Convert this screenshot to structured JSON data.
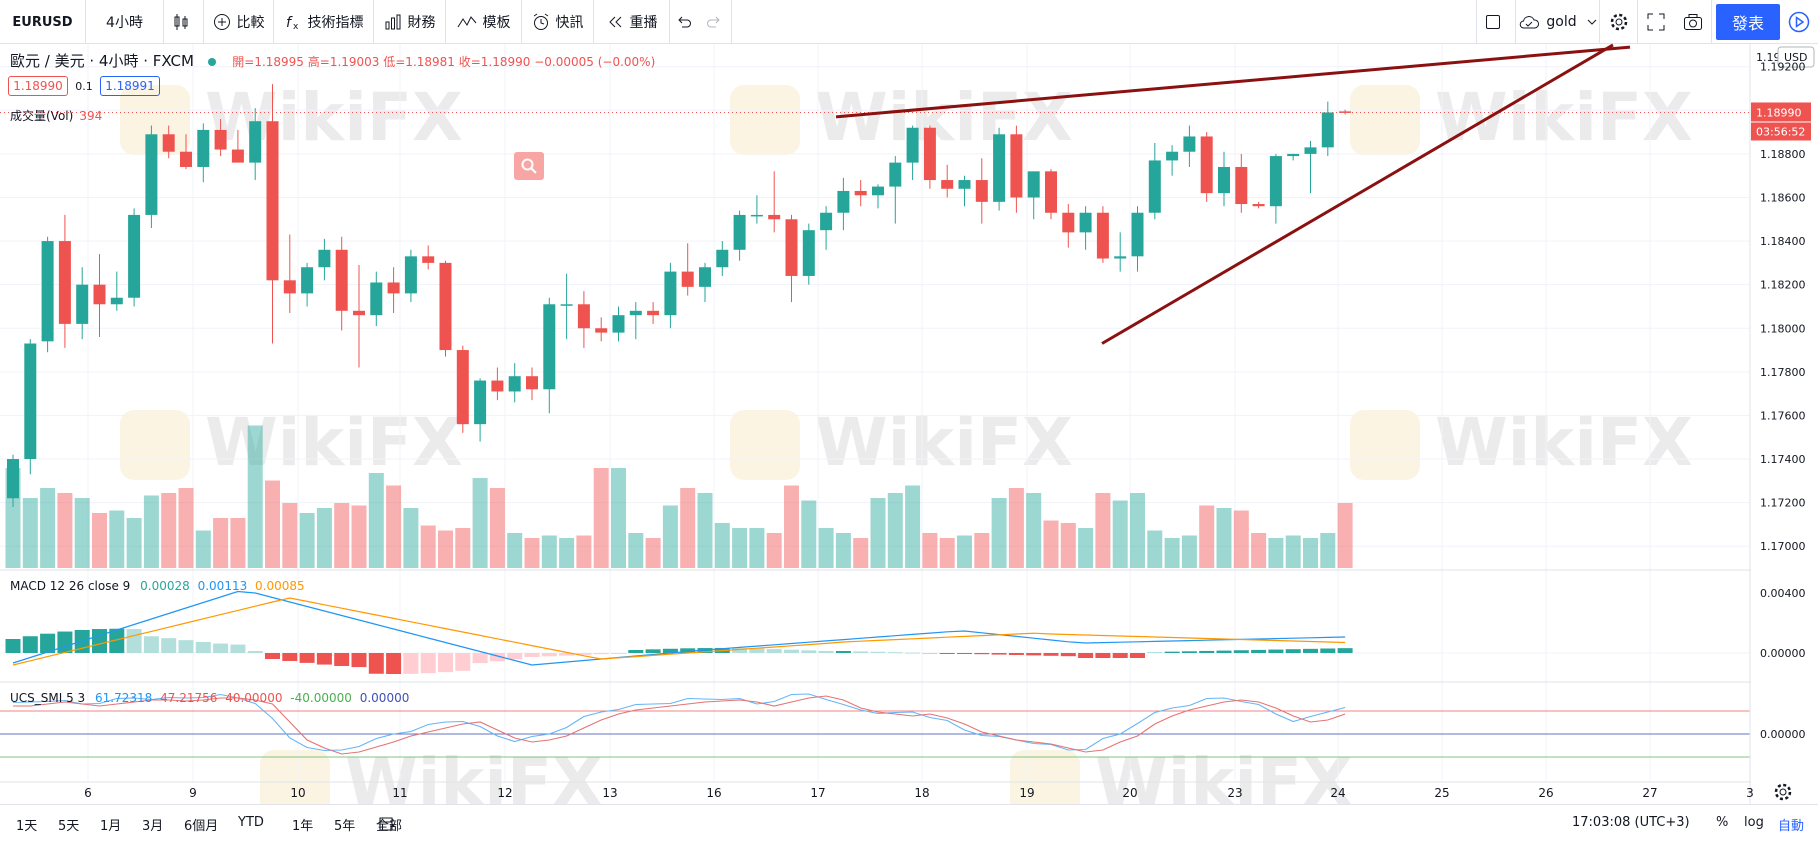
{
  "toolbar": {
    "symbol": "EURUSD",
    "interval": "4小時",
    "compare": "比較",
    "indicators": "技術指標",
    "financials": "財務",
    "templates": "模板",
    "alert": "快訊",
    "replay": "重播",
    "layout_name": "gold",
    "publish": "發表"
  },
  "legend": {
    "symbol": "歐元 / 美元 · 4小時 · FXCM",
    "ohlc": "開=1.18995  高=1.19003  低=1.18981  收=1.18990  −0.00005 (−0.00%)",
    "bid": "1.18990",
    "spread": "0.1",
    "ask": "1.18991",
    "volume_label": "成交量(Vol)",
    "volume_value": "394"
  },
  "macd": {
    "label": "MACD 12 26 close 9",
    "v1": "0.00028",
    "v2": "0.00113",
    "v3": "0.00085"
  },
  "ucs": {
    "label": "UCS_SMI 5 3",
    "v1": "61.72318",
    "v2": "47.21756",
    "v3": "40.00000",
    "v4": "-40.00000",
    "v5": "0.00000"
  },
  "price_axis": {
    "currency": "USD",
    "top_partial": "1.19",
    "labels": [
      "1.19200",
      "1.18800",
      "1.18600",
      "1.18400",
      "1.18200",
      "1.18000",
      "1.17800",
      "1.17600",
      "1.17400",
      "1.17200",
      "1.17000"
    ],
    "last_price": "1.18990",
    "countdown": "03:56:52",
    "macd_labels": [
      "0.00400",
      "0.00000"
    ],
    "ucs_labels": [
      "0.00000"
    ]
  },
  "time_axis": [
    "6",
    "9",
    "10",
    "11",
    "12",
    "13",
    "16",
    "17",
    "18",
    "19",
    "20",
    "23",
    "24",
    "25",
    "26",
    "27",
    "3"
  ],
  "bottom": {
    "ranges": [
      "1天",
      "5天",
      "1月",
      "3月",
      "6個月",
      "YTD",
      "1年",
      "5年",
      "全部"
    ],
    "clock": "17:03:08 (UTC+3)",
    "percent": "%",
    "log": "log",
    "auto": "自動"
  },
  "watermark": "WikiFX",
  "colors": {
    "up": "#26a69a",
    "down": "#ef5350",
    "trendline": "#8b1010",
    "publish": "#2962ff"
  },
  "chart_data": {
    "type": "candlestick",
    "y_range": [
      1.169,
      1.1924
    ],
    "candles": [
      [
        1.1722,
        1.1742,
        1.1718,
        1.174
      ],
      [
        1.174,
        1.1795,
        1.1733,
        1.1793
      ],
      [
        1.1794,
        1.1842,
        1.1789,
        1.184
      ],
      [
        1.184,
        1.1852,
        1.1791,
        1.1802
      ],
      [
        1.1802,
        1.1828,
        1.1795,
        1.182
      ],
      [
        1.182,
        1.1834,
        1.1796,
        1.1811
      ],
      [
        1.1811,
        1.1826,
        1.1808,
        1.1814
      ],
      [
        1.1814,
        1.1855,
        1.181,
        1.1852
      ],
      [
        1.1852,
        1.1893,
        1.1846,
        1.1889
      ],
      [
        1.1889,
        1.1893,
        1.1878,
        1.1881
      ],
      [
        1.1881,
        1.1889,
        1.1873,
        1.1874
      ],
      [
        1.1874,
        1.1894,
        1.1867,
        1.1891
      ],
      [
        1.1891,
        1.1896,
        1.1879,
        1.1882
      ],
      [
        1.1882,
        1.1891,
        1.1876,
        1.1876
      ],
      [
        1.1876,
        1.1901,
        1.1868,
        1.1895
      ],
      [
        1.1895,
        1.1912,
        1.1793,
        1.1822
      ],
      [
        1.1822,
        1.1843,
        1.1807,
        1.1816
      ],
      [
        1.1816,
        1.183,
        1.181,
        1.1828
      ],
      [
        1.1828,
        1.1841,
        1.1822,
        1.1836
      ],
      [
        1.1836,
        1.1842,
        1.1799,
        1.1808
      ],
      [
        1.1808,
        1.1829,
        1.1782,
        1.1806
      ],
      [
        1.1806,
        1.1826,
        1.1801,
        1.1821
      ],
      [
        1.1821,
        1.1828,
        1.1807,
        1.1816
      ],
      [
        1.1816,
        1.1836,
        1.1812,
        1.1833
      ],
      [
        1.1833,
        1.1838,
        1.1827,
        1.183
      ],
      [
        1.183,
        1.1831,
        1.1787,
        1.179
      ],
      [
        1.179,
        1.1792,
        1.1752,
        1.1756
      ],
      [
        1.1756,
        1.1777,
        1.1748,
        1.1776
      ],
      [
        1.1776,
        1.1782,
        1.1767,
        1.1771
      ],
      [
        1.1771,
        1.1784,
        1.1766,
        1.1778
      ],
      [
        1.1778,
        1.1782,
        1.1767,
        1.1772
      ],
      [
        1.1772,
        1.1814,
        1.1761,
        1.1811
      ],
      [
        1.1811,
        1.1825,
        1.1795,
        1.1811
      ],
      [
        1.1811,
        1.1817,
        1.1791,
        1.18
      ],
      [
        1.18,
        1.1805,
        1.1794,
        1.1798
      ],
      [
        1.1798,
        1.181,
        1.1794,
        1.1806
      ],
      [
        1.1806,
        1.1812,
        1.1795,
        1.1808
      ],
      [
        1.1808,
        1.1812,
        1.1802,
        1.1806
      ],
      [
        1.1806,
        1.183,
        1.18,
        1.1826
      ],
      [
        1.1826,
        1.1839,
        1.1815,
        1.1819
      ],
      [
        1.1819,
        1.183,
        1.1812,
        1.1828
      ],
      [
        1.1828,
        1.184,
        1.1824,
        1.1836
      ],
      [
        1.1836,
        1.1854,
        1.1831,
        1.1852
      ],
      [
        1.1852,
        1.1861,
        1.1848,
        1.1852
      ],
      [
        1.1852,
        1.1872,
        1.1844,
        1.185
      ],
      [
        1.185,
        1.1852,
        1.1812,
        1.1824
      ],
      [
        1.1824,
        1.1848,
        1.182,
        1.1845
      ],
      [
        1.1845,
        1.1856,
        1.1836,
        1.1853
      ],
      [
        1.1853,
        1.1869,
        1.1845,
        1.1863
      ],
      [
        1.1863,
        1.1868,
        1.1856,
        1.1861
      ],
      [
        1.1861,
        1.1866,
        1.1855,
        1.1865
      ],
      [
        1.1865,
        1.1879,
        1.1848,
        1.1876
      ],
      [
        1.1876,
        1.1893,
        1.1868,
        1.1892
      ],
      [
        1.1892,
        1.1893,
        1.1864,
        1.1868
      ],
      [
        1.1868,
        1.1875,
        1.186,
        1.1864
      ],
      [
        1.1864,
        1.187,
        1.1856,
        1.1868
      ],
      [
        1.1868,
        1.1878,
        1.1848,
        1.1858
      ],
      [
        1.1858,
        1.1892,
        1.1854,
        1.1889
      ],
      [
        1.1889,
        1.1893,
        1.1853,
        1.186
      ],
      [
        1.186,
        1.1871,
        1.185,
        1.1872
      ],
      [
        1.1872,
        1.1873,
        1.185,
        1.1853
      ],
      [
        1.1853,
        1.1857,
        1.1837,
        1.1844
      ],
      [
        1.1844,
        1.1856,
        1.1836,
        1.1853
      ],
      [
        1.1853,
        1.1856,
        1.183,
        1.1832
      ],
      [
        1.1832,
        1.1844,
        1.1826,
        1.1833
      ],
      [
        1.1833,
        1.1856,
        1.1826,
        1.1853
      ],
      [
        1.1853,
        1.1885,
        1.185,
        1.1877
      ],
      [
        1.1877,
        1.1884,
        1.187,
        1.1881
      ],
      [
        1.1881,
        1.1893,
        1.1874,
        1.1888
      ],
      [
        1.1888,
        1.189,
        1.1858,
        1.1862
      ],
      [
        1.1862,
        1.1881,
        1.1856,
        1.1874
      ],
      [
        1.1874,
        1.188,
        1.1853,
        1.1857
      ],
      [
        1.1857,
        1.1858,
        1.1855,
        1.1856
      ],
      [
        1.1856,
        1.188,
        1.1848,
        1.1879
      ],
      [
        1.1879,
        1.188,
        1.1877,
        1.188
      ],
      [
        1.188,
        1.1886,
        1.1862,
        1.1883
      ],
      [
        1.1883,
        1.1904,
        1.1879,
        1.1899
      ],
      [
        1.18995,
        1.19003,
        1.18981,
        1.1899
      ]
    ],
    "volume": [
      40,
      28,
      32,
      30,
      28,
      22,
      23,
      20,
      29,
      30,
      32,
      15,
      20,
      20,
      57,
      35,
      26,
      22,
      24,
      26,
      25,
      38,
      33,
      24,
      17,
      15,
      16,
      36,
      32,
      14,
      12,
      13,
      12,
      13,
      40,
      40,
      14,
      12,
      25,
      32,
      30,
      18,
      16,
      16,
      14,
      33,
      27,
      16,
      14,
      12,
      28,
      30,
      33,
      14,
      12,
      13,
      14,
      28,
      32,
      30,
      19,
      18,
      16,
      30,
      27,
      30,
      15,
      12,
      13,
      25,
      24,
      23,
      14,
      12,
      13,
      12,
      14,
      26,
      30
    ],
    "trendlines": [
      {
        "from": [
          "17",
          "1.1897"
        ],
        "to": [
          "27",
          "1.1929"
        ]
      },
      {
        "from": [
          "18",
          "1.1793"
        ],
        "to": [
          "27",
          "1.1930"
        ]
      }
    ]
  }
}
